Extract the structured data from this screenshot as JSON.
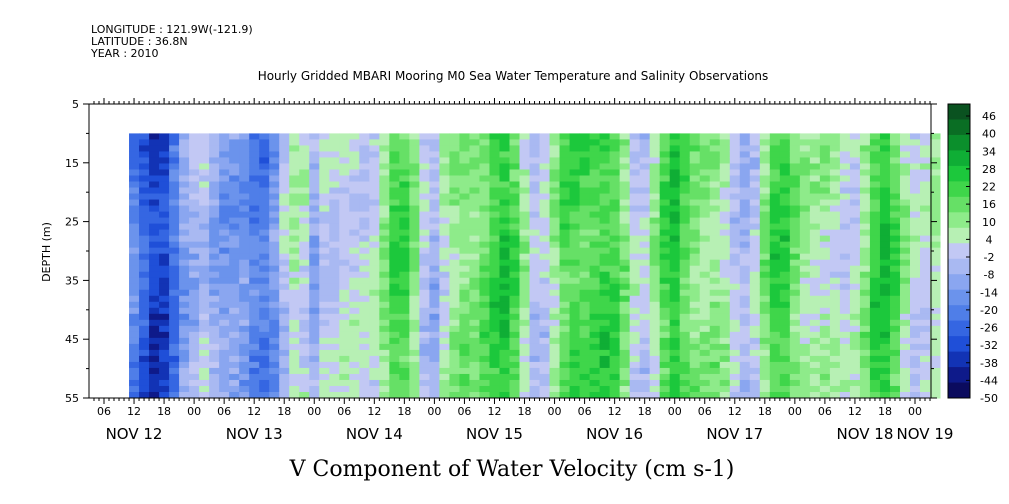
{
  "header": {
    "longitude": "LONGITUDE : 121.9W(-121.9)",
    "latitude": "LATITUDE : 36.8N",
    "year": "YEAR : 2010"
  },
  "chart_data": {
    "type": "heatmap",
    "title": "Hourly Gridded MBARI Mooring M0 Sea Water Temperature and Salinity Observations",
    "xlabel": "V Component of Water Velocity (cm s-1)",
    "ylabel": "DEPTH (m)",
    "ylim": [
      5,
      55
    ],
    "y_inverted": true,
    "y_ticks": [
      5,
      15,
      25,
      35,
      45,
      55
    ],
    "x_tick_hours": [
      "06",
      "12",
      "18",
      "00",
      "06",
      "12",
      "18",
      "00",
      "06",
      "12",
      "18",
      "00",
      "06",
      "12",
      "18",
      "00",
      "06",
      "12",
      "18",
      "00",
      "06",
      "12",
      "18",
      "00",
      "06",
      "12",
      "18",
      "00"
    ],
    "x_date_labels": [
      "NOV 12",
      "NOV 13",
      "NOV 14",
      "NOV 15",
      "NOV 16",
      "NOV 17",
      "NOV 18",
      "NOV 19"
    ],
    "data_extent": {
      "depth_top": 10,
      "depth_bottom": 55
    },
    "colorbar": {
      "levels": [
        -50,
        -44,
        -38,
        -32,
        -26,
        -20,
        -14,
        -8,
        -2,
        4,
        10,
        16,
        22,
        28,
        34,
        40,
        46
      ],
      "labels": [
        "46",
        "40",
        "34",
        "28",
        "22",
        "16",
        "10",
        "4",
        "-2",
        "-8",
        "-14",
        "-20",
        "-26",
        "-32",
        "-38",
        "-44",
        "-50"
      ],
      "colors": [
        "#0b0b5e",
        "#0e1a8a",
        "#1233b5",
        "#1f4fd8",
        "#3566e2",
        "#4f7ee8",
        "#6b93ec",
        "#8aa6f0",
        "#a9b9f2",
        "#c2c8f4",
        "#b7f0b4",
        "#8eeb8a",
        "#66e066",
        "#3fd64a",
        "#1cc83c",
        "#0fae35",
        "#0b8f2c",
        "#0a6e24",
        "#0a5220"
      ]
    },
    "day_columns": [
      {
        "day": "NOV 12 (partial)",
        "mean_v": -22
      },
      {
        "day": "NOV 13",
        "mean_v": -12
      },
      {
        "day": "NOV 14",
        "mean_v": 4
      },
      {
        "day": "NOV 15",
        "mean_v": 10
      },
      {
        "day": "NOV 16",
        "mean_v": 12
      },
      {
        "day": "NOV 17",
        "mean_v": 6
      },
      {
        "day": "NOV 18",
        "mean_v": 8
      }
    ]
  }
}
